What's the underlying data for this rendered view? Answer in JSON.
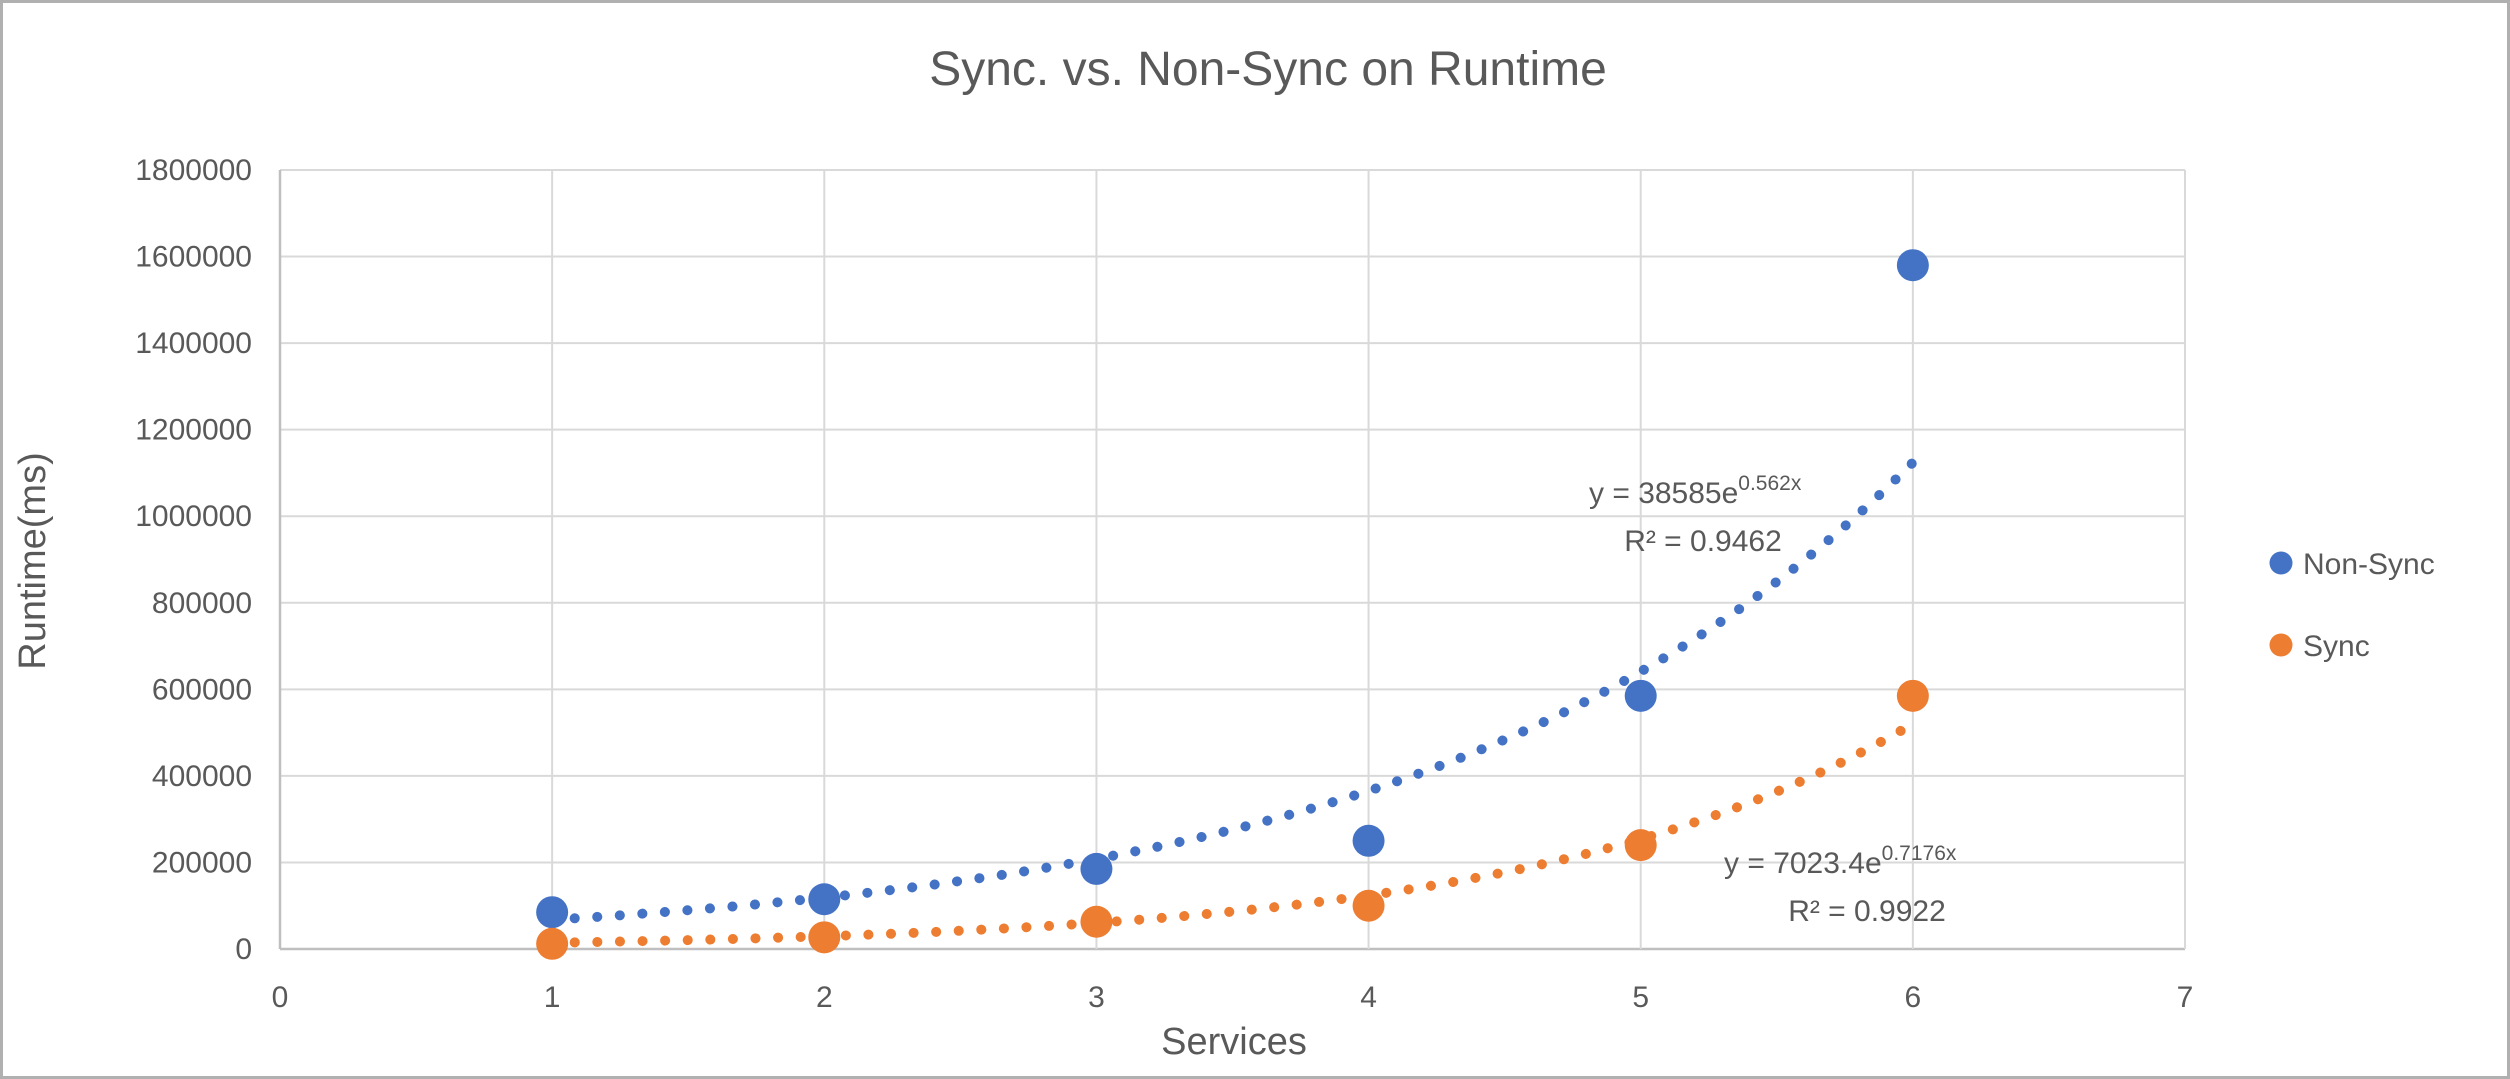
{
  "colors": {
    "text": "#595959",
    "gridline": "#d9d9d9",
    "axis_line": "#bfbfbf",
    "non_sync": "#4472C4",
    "sync": "#ED7D31",
    "background": "#ffffff",
    "frame_border": "#b0b0b0"
  },
  "chart_data": {
    "type": "scatter",
    "title": "Sync. vs. Non-Sync on  Runtime",
    "xlabel": "Services",
    "ylabel": "Runtime(ms)",
    "xlim": [
      0,
      7
    ],
    "ylim": [
      0,
      1800000
    ],
    "x_ticks": [
      0,
      1,
      2,
      3,
      4,
      5,
      6,
      7
    ],
    "y_ticks": [
      0,
      200000,
      400000,
      600000,
      800000,
      1000000,
      1200000,
      1400000,
      1600000,
      1800000
    ],
    "grid": true,
    "legend_position": "right",
    "series": [
      {
        "name": "Non-Sync",
        "color": "#4472C4",
        "x": [
          1,
          2,
          3,
          4,
          5,
          6
        ],
        "y": [
          85000,
          115000,
          185000,
          250000,
          585000,
          1580000
        ],
        "trendline": {
          "type": "exponential",
          "a": 38585,
          "b": 0.562,
          "x_start": 1,
          "x_end": 6,
          "equation_base": "y = 38585e",
          "equation_exponent": "0.562x",
          "r2_label": "R² = 0.9462"
        }
      },
      {
        "name": "Sync",
        "color": "#ED7D31",
        "x": [
          1,
          2,
          3,
          4,
          5,
          6
        ],
        "y": [
          12000,
          27000,
          63000,
          100000,
          240000,
          585000
        ],
        "trendline": {
          "type": "exponential",
          "a": 7023.4,
          "b": 0.7176,
          "x_start": 1,
          "x_end": 6,
          "equation_base": "y = 7023.4e",
          "equation_exponent": "0.7176x",
          "r2_label": "R² = 0.9922"
        }
      }
    ]
  }
}
